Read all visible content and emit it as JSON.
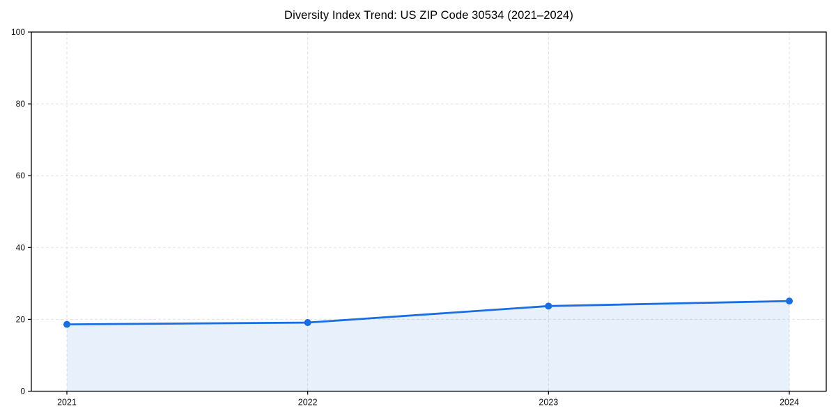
{
  "chart_data": {
    "type": "area",
    "title": "Diversity Index Trend: US ZIP Code 30534 (2021–2024)",
    "categories": [
      "2021",
      "2022",
      "2023",
      "2024"
    ],
    "series": [
      {
        "name": "Diversity Index",
        "values": [
          18.6,
          19.1,
          23.7,
          25.1
        ]
      }
    ],
    "xlabel": "",
    "ylabel": "",
    "ylim": [
      0,
      100
    ],
    "yticks": [
      0,
      20,
      40,
      60,
      80,
      100
    ],
    "grid": true,
    "grid_style": "dashed",
    "legend": "none",
    "colors": {
      "line": "#1a6ee4",
      "marker": "#1a6ee4",
      "fill": "rgba(26,110,228,0.10)",
      "gridline": "#e2e2e2",
      "axis": "#000000",
      "tick_text": "#0d0d0d",
      "background": "#ffffff"
    }
  }
}
